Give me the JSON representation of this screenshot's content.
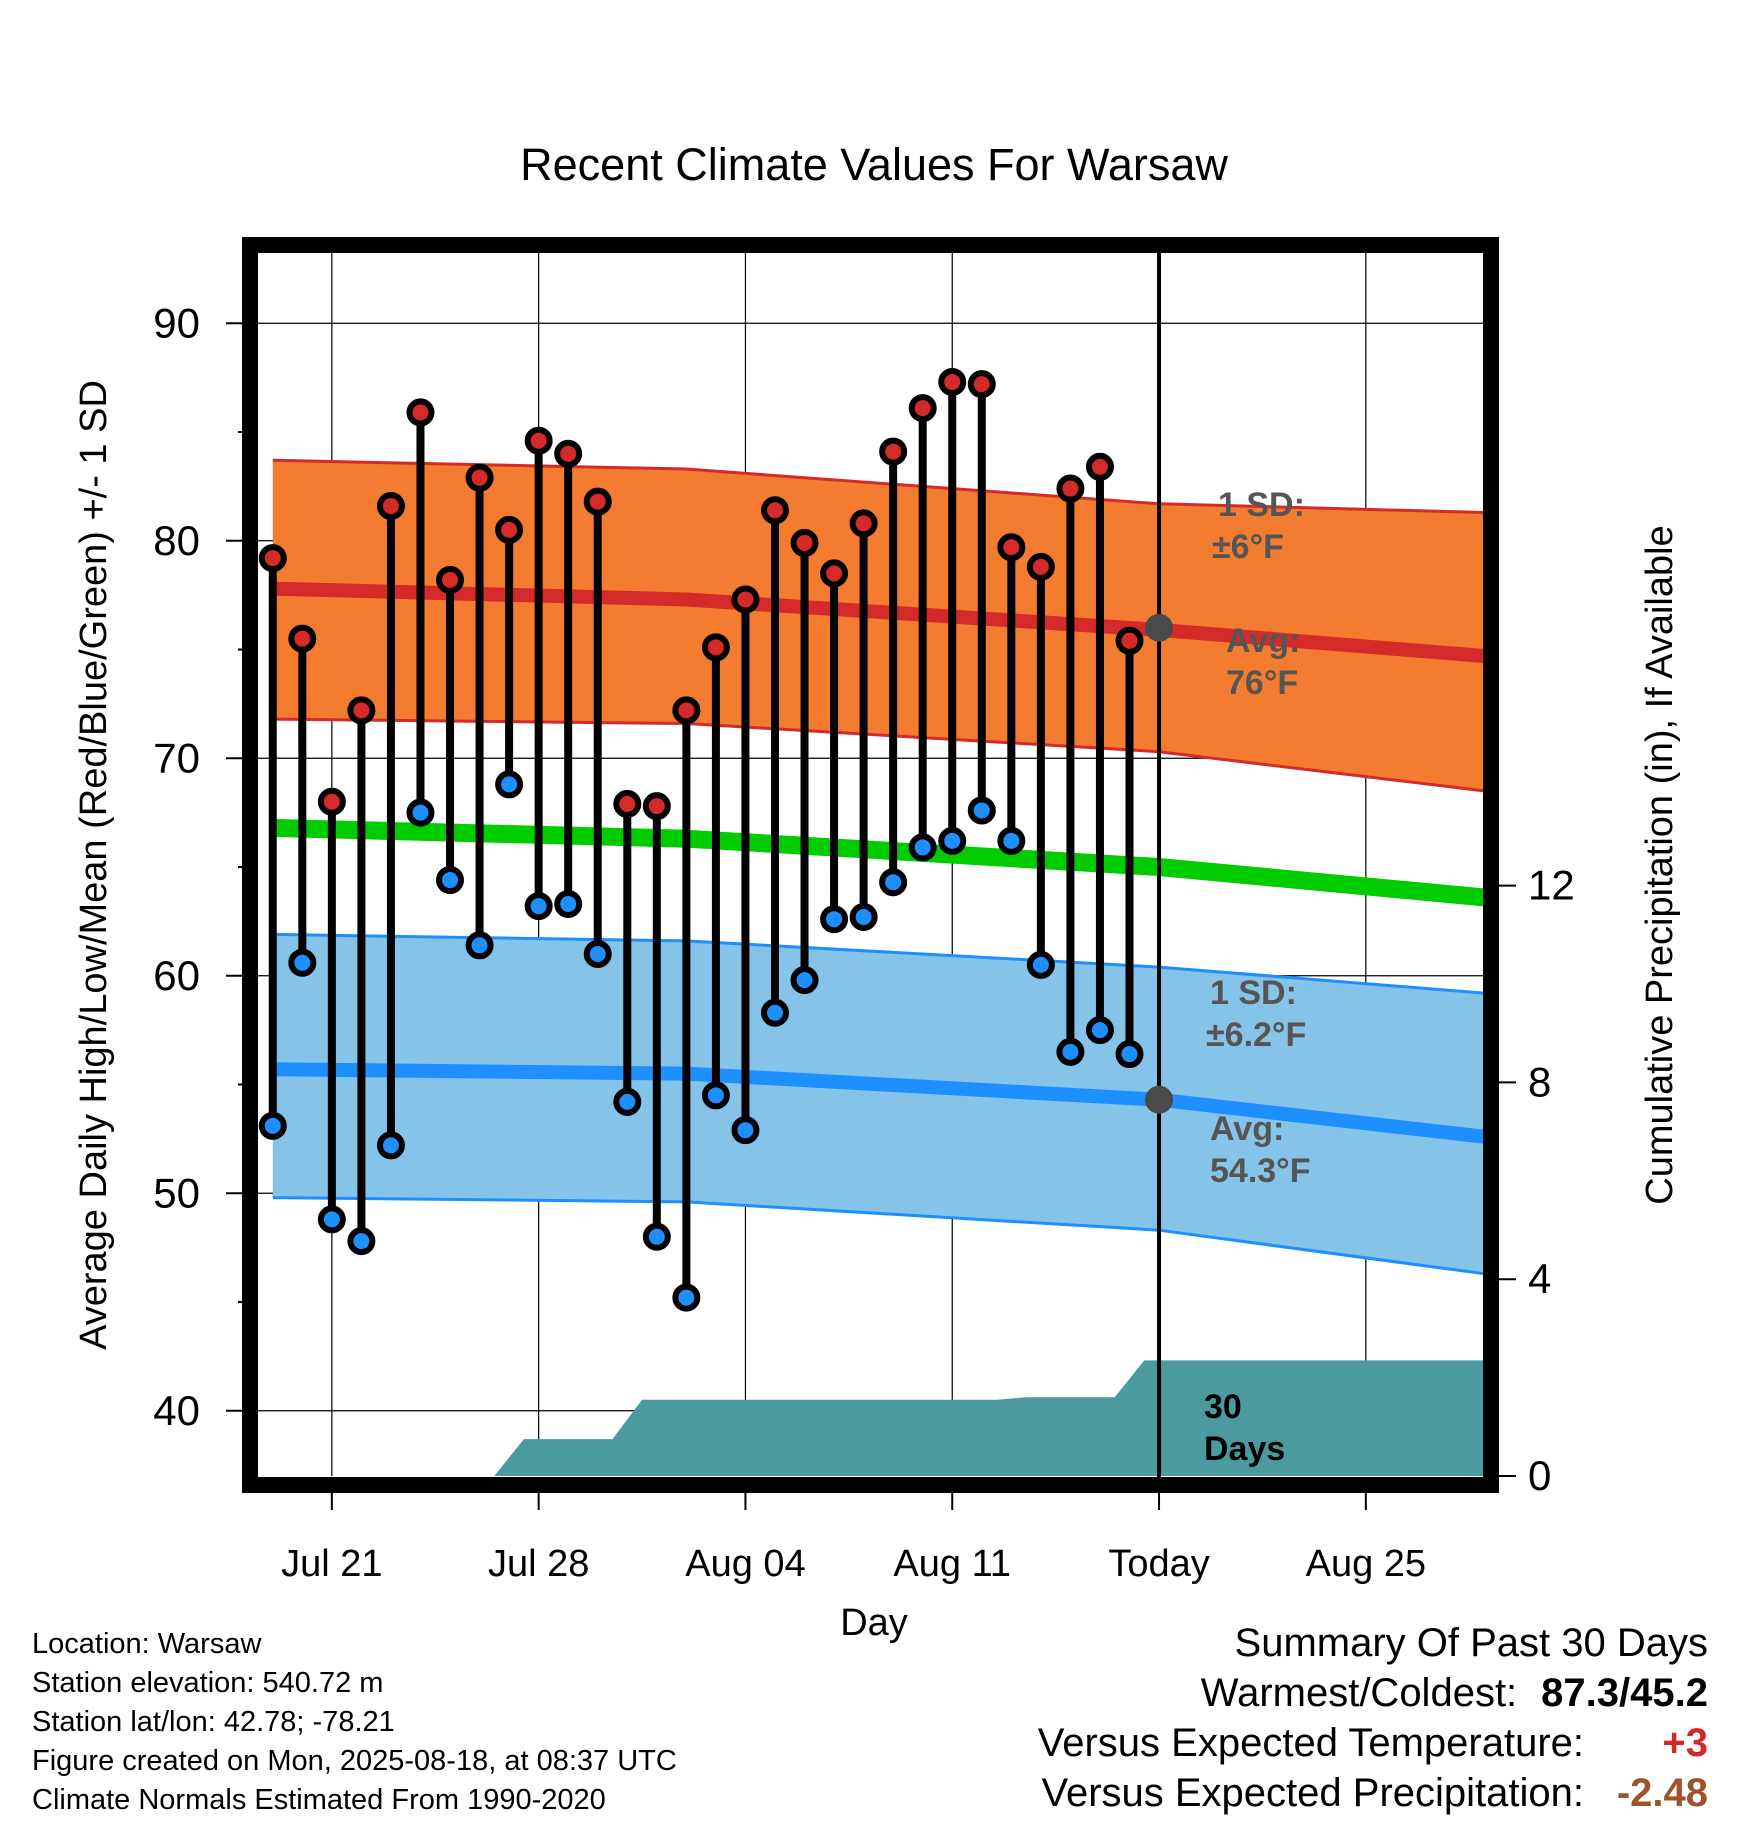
{
  "chart_data": {
    "type": "line",
    "title": "Recent Climate Values For Warsaw",
    "xlabel": "Day",
    "ylabel": "Average Daily High/Low/Mean (Red/Blue/Green) +/- 1 SD",
    "y2label": "Cumulative Precipitation (in), If Available",
    "ylim": [
      37,
      93
    ],
    "y2lim": [
      0,
      30
    ],
    "yticks": [
      40,
      50,
      60,
      70,
      80,
      90
    ],
    "y2ticks": [
      0,
      4,
      8,
      12
    ],
    "x_tick_labels": [
      "Jul 21",
      "Jul 28",
      "Aug 04",
      "Aug 11",
      "Today",
      "Aug 25"
    ],
    "days": [
      "Jul 19",
      "Jul 20",
      "Jul 21",
      "Jul 22",
      "Jul 23",
      "Jul 24",
      "Jul 25",
      "Jul 26",
      "Jul 27",
      "Jul 28",
      "Jul 29",
      "Jul 30",
      "Jul 31",
      "Aug 01",
      "Aug 02",
      "Aug 03",
      "Aug 04",
      "Aug 05",
      "Aug 06",
      "Aug 07",
      "Aug 08",
      "Aug 09",
      "Aug 10",
      "Aug 11",
      "Aug 12",
      "Aug 13",
      "Aug 14",
      "Aug 15",
      "Aug 16",
      "Aug 17"
    ],
    "highs": [
      79.2,
      75.5,
      68.0,
      72.2,
      81.6,
      85.9,
      78.2,
      82.9,
      80.5,
      84.6,
      84.0,
      81.8,
      67.9,
      67.8,
      72.2,
      75.1,
      77.3,
      81.4,
      79.9,
      78.5,
      80.8,
      84.1,
      86.1,
      87.3,
      87.2,
      79.7,
      78.8,
      82.4,
      83.4,
      75.4
    ],
    "lows": [
      53.1,
      60.6,
      48.8,
      47.8,
      52.2,
      67.5,
      64.4,
      61.4,
      68.8,
      63.2,
      63.3,
      61.0,
      54.2,
      48.0,
      45.2,
      54.5,
      52.9,
      58.3,
      59.8,
      62.6,
      62.7,
      64.3,
      65.9,
      66.2,
      67.6,
      66.2,
      60.5,
      56.5,
      57.5,
      56.4
    ],
    "normal_high_mean": [
      [
        0,
        77.8
      ],
      [
        14,
        77.3
      ],
      [
        30,
        75.9
      ],
      [
        41,
        74.7
      ]
    ],
    "normal_high_upper": [
      [
        0,
        83.7
      ],
      [
        14,
        83.3
      ],
      [
        30,
        81.7
      ],
      [
        41,
        81.3
      ]
    ],
    "normal_high_lower": [
      [
        0,
        71.8
      ],
      [
        14,
        71.6
      ],
      [
        30,
        70.3
      ],
      [
        41,
        68.5
      ]
    ],
    "normal_mean": [
      [
        0,
        66.8
      ],
      [
        14,
        66.3
      ],
      [
        30,
        65.0
      ],
      [
        41,
        63.6
      ]
    ],
    "normal_low_mean": [
      [
        0,
        55.7
      ],
      [
        14,
        55.5
      ],
      [
        30,
        54.3
      ],
      [
        41,
        52.6
      ]
    ],
    "normal_low_upper": [
      [
        0,
        61.9
      ],
      [
        14,
        61.6
      ],
      [
        30,
        60.4
      ],
      [
        41,
        59.2
      ]
    ],
    "normal_low_lower": [
      [
        0,
        49.8
      ],
      [
        14,
        49.6
      ],
      [
        30,
        48.3
      ],
      [
        41,
        46.3
      ]
    ],
    "precip_cumulative": [
      [
        7.5,
        0.0
      ],
      [
        8.5,
        0.75
      ],
      [
        11.5,
        0.75
      ],
      [
        12.5,
        1.55
      ],
      [
        24.5,
        1.55
      ],
      [
        25.5,
        1.6
      ],
      [
        28.5,
        1.6
      ],
      [
        29.5,
        2.35
      ],
      [
        41,
        2.35
      ]
    ],
    "today_high_avg": 76,
    "today_low_avg": 54.3,
    "annotations": {
      "high_sd_label": "1 SD:",
      "high_sd_value": "±6°F",
      "high_avg_label": "Avg:",
      "high_avg_value": "76°F",
      "low_sd_label": "1 SD:",
      "low_sd_value": "±6.2°F",
      "low_avg_label": "Avg:",
      "low_avg_value": "54.3°F",
      "precip_days_line1": "30",
      "precip_days_line2": "Days"
    },
    "colors": {
      "high_band": "#f47c30",
      "high_line": "#d42a2a",
      "mean_line": "#00cc00",
      "low_band": "#86c3e8",
      "low_line": "#1e8fff",
      "precip": "#4b9aa0",
      "high_marker": "#d42a2a",
      "low_marker": "#1e8fff",
      "today_marker": "#4a4a4a",
      "annotation_text": "#555555"
    }
  },
  "info": {
    "location": "Location: Warsaw",
    "elevation": "Station elevation: 540.72 m",
    "latlon": "Station lat/lon: 42.78; -78.21",
    "created": "Figure created on Mon, 2025-08-18, at 08:37 UTC",
    "normals": "Climate Normals Estimated From 1990-2020"
  },
  "summary": {
    "title": "Summary Of Past 30 Days",
    "warmest_coldest_label": "Warmest/Coldest:",
    "warmest_coldest_value": "87.3/45.2",
    "temp_label": "Versus Expected Temperature:",
    "temp_value": "+3",
    "precip_label": "Versus Expected Precipitation:",
    "precip_value": "-2.48"
  }
}
